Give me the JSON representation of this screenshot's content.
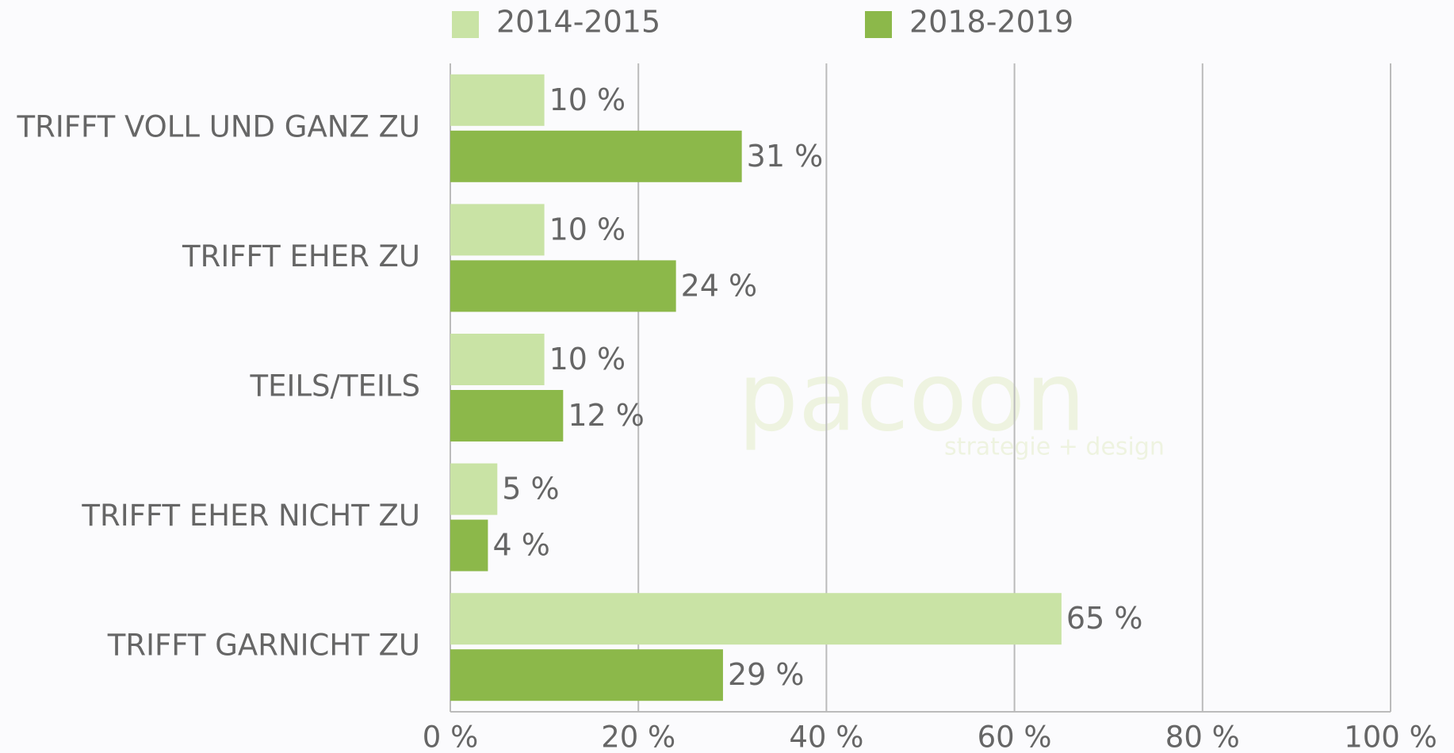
{
  "chart_data": {
    "type": "hbar",
    "categories": [
      "TRIFFT VOLL UND GANZ ZU",
      "TRIFFT EHER ZU",
      "TEILS/TEILS",
      "TRIFFT EHER NICHT ZU",
      "TRIFFT GARNICHT ZU"
    ],
    "series": [
      {
        "name": "2014-2015",
        "color": "#c9e3a5",
        "values": [
          10,
          10,
          10,
          5,
          65
        ],
        "value_labels": [
          "10 %",
          "10 %",
          "10 %",
          "5 %",
          "65 %"
        ]
      },
      {
        "name": "2018-2019",
        "color": "#8cb84a",
        "values": [
          31,
          24,
          12,
          4,
          29
        ],
        "value_labels": [
          "31 %",
          "24 %",
          "12 %",
          "4 %",
          "29 %"
        ]
      }
    ],
    "xlim": [
      0,
      100
    ],
    "xticks": [
      {
        "value": 0,
        "label": "0 %"
      },
      {
        "value": 20,
        "label": "20 %"
      },
      {
        "value": 40,
        "label": "40 %"
      },
      {
        "value": 60,
        "label": "60 %"
      },
      {
        "value": 80,
        "label": "80 %"
      },
      {
        "value": 100,
        "label": "100 %"
      }
    ],
    "grid": true,
    "legend": "top",
    "watermark": [
      "pacoon",
      "strategie + design"
    ]
  }
}
